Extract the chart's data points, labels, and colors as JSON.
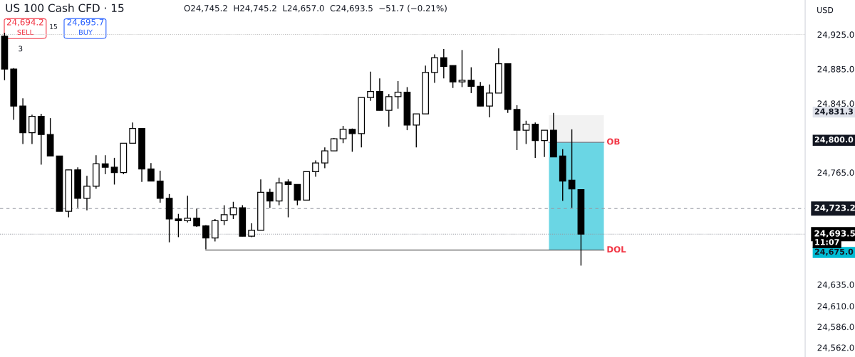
{
  "chart_data": {
    "type": "candlestick",
    "title": "US 100 Cash CFD · 15",
    "subtitle": "O24,745.2  H24,745.2  L24,657.0  C24,693.5  −51.7 (−0.21%)",
    "categories": [
      null,
      null,
      null,
      null,
      null,
      null,
      null,
      null,
      null,
      null,
      null,
      null,
      null,
      null,
      null,
      null,
      null,
      null,
      null,
      null,
      null,
      null,
      null,
      null,
      null,
      null,
      null,
      null,
      null,
      null,
      null,
      null,
      null,
      null,
      null,
      null,
      null,
      null,
      null,
      null,
      null,
      null,
      null,
      null,
      null,
      null,
      null,
      null,
      null,
      null,
      null,
      null,
      null,
      null,
      null,
      null,
      null,
      null,
      null,
      null,
      null,
      null,
      null,
      null,
      null,
      null,
      null,
      null,
      null,
      null,
      null,
      null,
      null,
      null,
      null,
      null,
      null,
      null,
      null,
      null,
      null,
      null,
      null,
      null,
      null,
      null,
      null,
      null
    ],
    "ohlc": [
      [
        24923,
        24927,
        24872,
        24885
      ],
      [
        24885,
        24886,
        24826,
        24842
      ],
      [
        24842,
        24851,
        24798,
        24811
      ],
      [
        24811,
        24832,
        24798,
        24830
      ],
      [
        24830,
        24833,
        24774,
        24809
      ],
      [
        24809,
        24828,
        24784,
        24784
      ],
      [
        24784,
        24784,
        24720,
        24720
      ],
      [
        24720,
        24768,
        24713,
        24768
      ],
      [
        24768,
        24771,
        24724,
        24735
      ],
      [
        24735,
        24761,
        24721,
        24749
      ],
      [
        24749,
        24785,
        24746,
        24775
      ],
      [
        24775,
        24785,
        24763,
        24771
      ],
      [
        24771,
        24782,
        24751,
        24765
      ],
      [
        24765,
        24799,
        24763,
        24799
      ],
      [
        24799,
        24823,
        24799,
        24816
      ],
      [
        24816,
        24816,
        24754,
        24769
      ],
      [
        24769,
        24776,
        24755,
        24755
      ],
      [
        24755,
        24767,
        24730,
        24735
      ],
      [
        24735,
        24740,
        24684,
        24711
      ],
      [
        24711,
        24717,
        24690,
        24709
      ],
      [
        24709,
        24738,
        24707,
        24712
      ],
      [
        24712,
        24723,
        24702,
        24703
      ],
      [
        24703,
        24704,
        24676,
        24689
      ],
      [
        24689,
        24711,
        24685,
        24709
      ],
      [
        24709,
        24727,
        24704,
        24716
      ],
      [
        24716,
        24731,
        24711,
        24724
      ],
      [
        24724,
        24727,
        24691,
        24691
      ],
      [
        24691,
        24706,
        24690,
        24698
      ],
      [
        24698,
        24757,
        24698,
        24742
      ],
      [
        24742,
        24746,
        24724,
        24732
      ],
      [
        24732,
        24759,
        24727,
        24753
      ],
      [
        24754,
        24757,
        24713,
        24751
      ],
      [
        24751,
        24751,
        24727,
        24733
      ],
      [
        24733,
        24766,
        24733,
        24766
      ],
      [
        24766,
        24779,
        24760,
        24776
      ],
      [
        24776,
        24794,
        24770,
        24790
      ],
      [
        24790,
        24805,
        24790,
        24804
      ],
      [
        24804,
        24819,
        24799,
        24815
      ],
      [
        24815,
        24816,
        24789,
        24810
      ],
      [
        24810,
        24852,
        24794,
        24852
      ],
      [
        24852,
        24882,
        24848,
        24859
      ],
      [
        24859,
        24874,
        24837,
        24837
      ],
      [
        24837,
        24856,
        24818,
        24853
      ],
      [
        24853,
        24871,
        24839,
        24858
      ],
      [
        24858,
        24864,
        24814,
        24820
      ],
      [
        24820,
        24833,
        24794,
        24833
      ],
      [
        24833,
        24889,
        24833,
        24881
      ],
      [
        24881,
        24902,
        24869,
        24898
      ],
      [
        24898,
        24908,
        24874,
        24888
      ],
      [
        24889,
        24889,
        24863,
        24870
      ],
      [
        24870,
        24907,
        24864,
        24872
      ],
      [
        24872,
        24887,
        24857,
        24865
      ],
      [
        24865,
        24870,
        24842,
        24842
      ],
      [
        24842,
        24867,
        24829,
        24857
      ],
      [
        24857,
        24909,
        24857,
        24891
      ],
      [
        24891,
        24891,
        24834,
        24838
      ],
      [
        24838,
        24843,
        24791,
        24814
      ],
      [
        24814,
        24825,
        24798,
        24821
      ],
      [
        24821,
        24823,
        24782,
        24802
      ],
      [
        24802,
        24814,
        24783,
        24814
      ],
      [
        24814,
        24834,
        24783,
        24783
      ],
      [
        24784,
        24792,
        24732,
        24755
      ],
      [
        24756,
        24815,
        24724,
        24746
      ],
      [
        24745.2,
        24745.2,
        24657,
        24693.5
      ],
      null,
      null,
      null,
      null,
      null,
      null,
      null,
      null,
      null,
      null,
      null,
      null,
      null,
      null,
      null,
      null,
      null,
      null,
      null,
      null,
      null,
      null,
      null,
      null
    ],
    "color": "#000000",
    "ylim": [
      24551,
      24965
    ],
    "yticks": [
      {
        "value": 24925,
        "label": "24,925.0"
      },
      {
        "value": 24885,
        "label": "24,885.0"
      },
      {
        "value": 24845,
        "label": "24,845.0"
      },
      {
        "value": 24765,
        "label": "24,765.0"
      },
      {
        "value": 24635,
        "label": "24,635.0"
      },
      {
        "value": 24610,
        "label": "24,610.0"
      },
      {
        "value": 24586,
        "label": "24,586.0"
      },
      {
        "value": 24562,
        "label": "24,562.0"
      }
    ],
    "tick_labels": "y",
    "grid": false,
    "bands": [
      {
        "axis": "y",
        "from": 24800,
        "to": 24831.3,
        "color": "#f2f2f2"
      },
      {
        "axis": "y",
        "from": 24675,
        "to": 24800,
        "color": "#6ad6e4"
      }
    ],
    "ref_lines": [
      {
        "axis": "y",
        "value": 24800,
        "label": "OB",
        "color": "#787b86",
        "line_style": "solid"
      },
      {
        "axis": "y",
        "value": 24675,
        "label": "DOL",
        "color": "#555555",
        "line_style": "solid"
      },
      {
        "axis": "y",
        "value": 24723.2,
        "label": "24,723.2",
        "color": "#9598a1",
        "line_style": "dashed"
      },
      {
        "axis": "y",
        "value": 24693.5,
        "label": "24,693.5",
        "color": "#9598a1",
        "line_style": "dotted"
      },
      {
        "axis": "y",
        "value": 24925,
        "color": "#c0c0c0",
        "line_style": "dotted"
      }
    ],
    "annotations": [
      "24,831.3",
      "24,800.0",
      "24,675.0",
      "24,694.2",
      "SELL",
      "15",
      "24,695.7",
      "BUY",
      "3",
      "USD",
      "11:07"
    ]
  }
}
